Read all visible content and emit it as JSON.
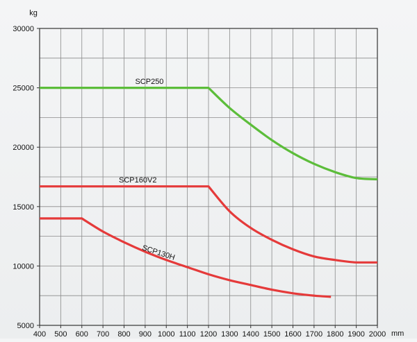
{
  "chart_data": {
    "type": "line",
    "title": "",
    "xlabel": "mm",
    "ylabel": "kg",
    "xlim": [
      400,
      2000
    ],
    "ylim": [
      5000,
      30000
    ],
    "x_ticks": [
      400,
      500,
      600,
      700,
      800,
      900,
      1000,
      1100,
      1200,
      1300,
      1400,
      1500,
      1600,
      1700,
      1800,
      1900,
      2000
    ],
    "y_ticks": [
      5000,
      10000,
      15000,
      20000,
      25000,
      30000
    ],
    "x_minor_step": 100,
    "y_minor_step": 2500,
    "grid": true,
    "series": [
      {
        "name": "SCP250",
        "color": "#5cbd3a",
        "points": [
          [
            400,
            25000
          ],
          [
            1200,
            25000
          ],
          [
            1300,
            23300
          ],
          [
            1400,
            21900
          ],
          [
            1500,
            20600
          ],
          [
            1600,
            19500
          ],
          [
            1700,
            18600
          ],
          [
            1800,
            17900
          ],
          [
            1900,
            17400
          ],
          [
            2000,
            17300
          ]
        ],
        "label_at": [
          920,
          25100
        ]
      },
      {
        "name": "SCP160V2",
        "color": "#e53a3a",
        "points": [
          [
            400,
            16700
          ],
          [
            1200,
            16700
          ],
          [
            1300,
            14600
          ],
          [
            1400,
            13200
          ],
          [
            1500,
            12200
          ],
          [
            1600,
            11400
          ],
          [
            1700,
            10800
          ],
          [
            1800,
            10500
          ],
          [
            1900,
            10300
          ],
          [
            2000,
            10300
          ]
        ],
        "label_at": [
          865,
          16800
        ]
      },
      {
        "name": "SCP130H",
        "color": "#e53a3a",
        "points": [
          [
            400,
            14000
          ],
          [
            600,
            14000
          ],
          [
            700,
            12900
          ],
          [
            800,
            12000
          ],
          [
            900,
            11200
          ],
          [
            1000,
            10500
          ],
          [
            1100,
            9900
          ],
          [
            1200,
            9300
          ],
          [
            1300,
            8800
          ],
          [
            1400,
            8400
          ],
          [
            1500,
            8000
          ],
          [
            1600,
            7700
          ],
          [
            1700,
            7500
          ],
          [
            1780,
            7400
          ]
        ],
        "label_at": [
          960,
          10700
        ],
        "label_rotate": 18
      }
    ]
  }
}
